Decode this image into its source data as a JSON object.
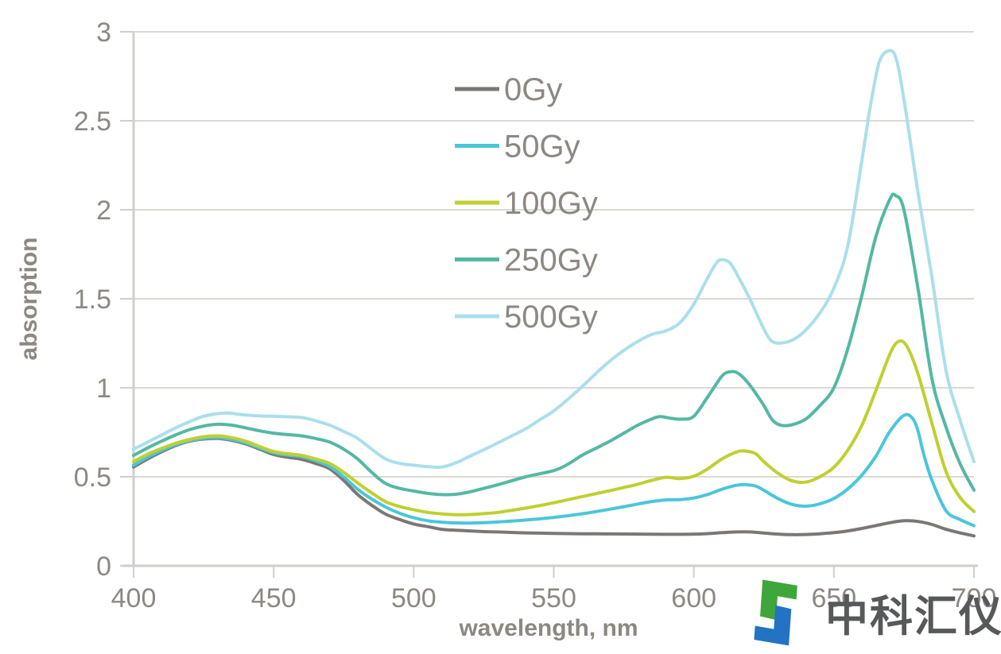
{
  "chart_data": {
    "type": "line",
    "title": "",
    "xlabel": "wavelength, nm",
    "ylabel": "absorption",
    "xlim": [
      400,
      700
    ],
    "ylim": [
      0,
      3
    ],
    "xticks": [
      400,
      450,
      500,
      550,
      600,
      650,
      700
    ],
    "yticks": [
      0,
      0.5,
      1,
      1.5,
      2,
      2.5,
      3
    ],
    "ytick_labels": [
      "0",
      "0.5",
      "1",
      "1.5",
      "2",
      "2.5",
      "3"
    ],
    "grid": "horizontal-only",
    "legend_position": "inside-upper-left",
    "legend_order": [
      "0Gy",
      "50Gy",
      "100Gy",
      "250Gy",
      "500Gy"
    ],
    "series": [
      {
        "name": "0Gy",
        "color": "#7b7773",
        "points": [
          [
            400,
            0.555
          ],
          [
            405,
            0.6
          ],
          [
            410,
            0.64
          ],
          [
            415,
            0.675
          ],
          [
            420,
            0.7
          ],
          [
            425,
            0.712
          ],
          [
            430,
            0.715
          ],
          [
            435,
            0.705
          ],
          [
            440,
            0.685
          ],
          [
            445,
            0.655
          ],
          [
            450,
            0.625
          ],
          [
            455,
            0.61
          ],
          [
            460,
            0.598
          ],
          [
            465,
            0.575
          ],
          [
            470,
            0.545
          ],
          [
            475,
            0.48
          ],
          [
            480,
            0.4
          ],
          [
            485,
            0.34
          ],
          [
            490,
            0.29
          ],
          [
            495,
            0.26
          ],
          [
            500,
            0.235
          ],
          [
            505,
            0.22
          ],
          [
            510,
            0.205
          ],
          [
            515,
            0.2
          ],
          [
            520,
            0.196
          ],
          [
            525,
            0.192
          ],
          [
            530,
            0.19
          ],
          [
            540,
            0.185
          ],
          [
            550,
            0.182
          ],
          [
            560,
            0.18
          ],
          [
            570,
            0.179
          ],
          [
            580,
            0.178
          ],
          [
            590,
            0.177
          ],
          [
            600,
            0.178
          ],
          [
            605,
            0.181
          ],
          [
            610,
            0.186
          ],
          [
            615,
            0.19
          ],
          [
            620,
            0.19
          ],
          [
            625,
            0.184
          ],
          [
            630,
            0.178
          ],
          [
            635,
            0.175
          ],
          [
            640,
            0.176
          ],
          [
            645,
            0.18
          ],
          [
            650,
            0.186
          ],
          [
            655,
            0.196
          ],
          [
            660,
            0.21
          ],
          [
            665,
            0.226
          ],
          [
            670,
            0.242
          ],
          [
            675,
            0.253
          ],
          [
            680,
            0.249
          ],
          [
            685,
            0.232
          ],
          [
            690,
            0.205
          ],
          [
            695,
            0.185
          ],
          [
            700,
            0.168
          ]
        ]
      },
      {
        "name": "50Gy",
        "color": "#4ac6db",
        "points": [
          [
            400,
            0.565
          ],
          [
            405,
            0.61
          ],
          [
            410,
            0.648
          ],
          [
            415,
            0.68
          ],
          [
            420,
            0.703
          ],
          [
            425,
            0.716
          ],
          [
            430,
            0.72
          ],
          [
            435,
            0.71
          ],
          [
            440,
            0.69
          ],
          [
            445,
            0.662
          ],
          [
            450,
            0.635
          ],
          [
            455,
            0.622
          ],
          [
            460,
            0.613
          ],
          [
            465,
            0.59
          ],
          [
            470,
            0.558
          ],
          [
            475,
            0.5
          ],
          [
            480,
            0.43
          ],
          [
            485,
            0.375
          ],
          [
            490,
            0.33
          ],
          [
            495,
            0.295
          ],
          [
            500,
            0.27
          ],
          [
            505,
            0.253
          ],
          [
            510,
            0.245
          ],
          [
            515,
            0.241
          ],
          [
            520,
            0.24
          ],
          [
            525,
            0.242
          ],
          [
            530,
            0.246
          ],
          [
            540,
            0.257
          ],
          [
            550,
            0.272
          ],
          [
            560,
            0.292
          ],
          [
            570,
            0.318
          ],
          [
            575,
            0.332
          ],
          [
            580,
            0.347
          ],
          [
            585,
            0.361
          ],
          [
            590,
            0.37
          ],
          [
            595,
            0.372
          ],
          [
            600,
            0.381
          ],
          [
            605,
            0.401
          ],
          [
            610,
            0.43
          ],
          [
            615,
            0.452
          ],
          [
            618,
            0.456
          ],
          [
            622,
            0.448
          ],
          [
            625,
            0.424
          ],
          [
            630,
            0.378
          ],
          [
            635,
            0.345
          ],
          [
            640,
            0.335
          ],
          [
            645,
            0.348
          ],
          [
            650,
            0.378
          ],
          [
            655,
            0.432
          ],
          [
            660,
            0.51
          ],
          [
            665,
            0.616
          ],
          [
            670,
            0.755
          ],
          [
            675,
            0.845
          ],
          [
            678,
            0.83
          ],
          [
            680,
            0.76
          ],
          [
            682,
            0.63
          ],
          [
            685,
            0.48
          ],
          [
            690,
            0.31
          ],
          [
            695,
            0.26
          ],
          [
            700,
            0.225
          ]
        ]
      },
      {
        "name": "100Gy",
        "color": "#bfd02f",
        "points": [
          [
            400,
            0.585
          ],
          [
            405,
            0.627
          ],
          [
            410,
            0.66
          ],
          [
            415,
            0.688
          ],
          [
            420,
            0.71
          ],
          [
            425,
            0.725
          ],
          [
            430,
            0.73
          ],
          [
            435,
            0.72
          ],
          [
            440,
            0.7
          ],
          [
            445,
            0.67
          ],
          [
            450,
            0.642
          ],
          [
            455,
            0.63
          ],
          [
            460,
            0.62
          ],
          [
            465,
            0.6
          ],
          [
            470,
            0.575
          ],
          [
            475,
            0.525
          ],
          [
            480,
            0.465
          ],
          [
            485,
            0.41
          ],
          [
            490,
            0.36
          ],
          [
            495,
            0.333
          ],
          [
            500,
            0.315
          ],
          [
            505,
            0.3
          ],
          [
            510,
            0.292
          ],
          [
            515,
            0.287
          ],
          [
            520,
            0.288
          ],
          [
            525,
            0.293
          ],
          [
            530,
            0.3
          ],
          [
            540,
            0.324
          ],
          [
            550,
            0.354
          ],
          [
            560,
            0.388
          ],
          [
            570,
            0.422
          ],
          [
            575,
            0.44
          ],
          [
            580,
            0.458
          ],
          [
            585,
            0.48
          ],
          [
            590,
            0.497
          ],
          [
            595,
            0.49
          ],
          [
            600,
            0.503
          ],
          [
            605,
            0.545
          ],
          [
            610,
            0.6
          ],
          [
            615,
            0.638
          ],
          [
            618,
            0.645
          ],
          [
            622,
            0.63
          ],
          [
            625,
            0.585
          ],
          [
            630,
            0.52
          ],
          [
            635,
            0.478
          ],
          [
            640,
            0.47
          ],
          [
            645,
            0.5
          ],
          [
            650,
            0.553
          ],
          [
            655,
            0.65
          ],
          [
            660,
            0.79
          ],
          [
            665,
            0.985
          ],
          [
            670,
            1.19
          ],
          [
            673,
            1.26
          ],
          [
            676,
            1.235
          ],
          [
            680,
            1.08
          ],
          [
            685,
            0.8
          ],
          [
            690,
            0.53
          ],
          [
            695,
            0.385
          ],
          [
            700,
            0.305
          ]
        ]
      },
      {
        "name": "250Gy",
        "color": "#54b8a2",
        "points": [
          [
            400,
            0.62
          ],
          [
            405,
            0.662
          ],
          [
            410,
            0.7
          ],
          [
            415,
            0.735
          ],
          [
            420,
            0.765
          ],
          [
            425,
            0.785
          ],
          [
            430,
            0.795
          ],
          [
            435,
            0.79
          ],
          [
            440,
            0.775
          ],
          [
            445,
            0.758
          ],
          [
            450,
            0.745
          ],
          [
            455,
            0.737
          ],
          [
            460,
            0.73
          ],
          [
            465,
            0.715
          ],
          [
            470,
            0.695
          ],
          [
            475,
            0.655
          ],
          [
            480,
            0.6
          ],
          [
            485,
            0.525
          ],
          [
            490,
            0.462
          ],
          [
            495,
            0.435
          ],
          [
            500,
            0.42
          ],
          [
            505,
            0.407
          ],
          [
            510,
            0.4
          ],
          [
            515,
            0.402
          ],
          [
            520,
            0.415
          ],
          [
            525,
            0.435
          ],
          [
            530,
            0.455
          ],
          [
            540,
            0.5
          ],
          [
            550,
            0.535
          ],
          [
            555,
            0.57
          ],
          [
            560,
            0.62
          ],
          [
            565,
            0.66
          ],
          [
            570,
            0.7
          ],
          [
            575,
            0.745
          ],
          [
            580,
            0.79
          ],
          [
            585,
            0.825
          ],
          [
            588,
            0.838
          ],
          [
            592,
            0.828
          ],
          [
            596,
            0.824
          ],
          [
            600,
            0.84
          ],
          [
            605,
            0.95
          ],
          [
            610,
            1.065
          ],
          [
            613,
            1.09
          ],
          [
            616,
            1.08
          ],
          [
            620,
            1.015
          ],
          [
            625,
            0.9
          ],
          [
            628,
            0.82
          ],
          [
            631,
            0.79
          ],
          [
            635,
            0.792
          ],
          [
            640,
            0.825
          ],
          [
            645,
            0.9
          ],
          [
            650,
            1.0
          ],
          [
            655,
            1.22
          ],
          [
            660,
            1.52
          ],
          [
            665,
            1.85
          ],
          [
            670,
            2.06
          ],
          [
            672,
            2.08
          ],
          [
            675,
            2.0
          ],
          [
            680,
            1.56
          ],
          [
            685,
            1.05
          ],
          [
            690,
            0.78
          ],
          [
            695,
            0.575
          ],
          [
            700,
            0.425
          ]
        ]
      },
      {
        "name": "500Gy",
        "color": "#aadfec",
        "points": [
          [
            400,
            0.655
          ],
          [
            405,
            0.695
          ],
          [
            410,
            0.735
          ],
          [
            415,
            0.775
          ],
          [
            420,
            0.81
          ],
          [
            425,
            0.84
          ],
          [
            430,
            0.855
          ],
          [
            434,
            0.858
          ],
          [
            438,
            0.85
          ],
          [
            442,
            0.845
          ],
          [
            446,
            0.841
          ],
          [
            450,
            0.84
          ],
          [
            455,
            0.837
          ],
          [
            460,
            0.833
          ],
          [
            465,
            0.815
          ],
          [
            470,
            0.79
          ],
          [
            475,
            0.755
          ],
          [
            480,
            0.715
          ],
          [
            485,
            0.655
          ],
          [
            490,
            0.6
          ],
          [
            495,
            0.575
          ],
          [
            500,
            0.565
          ],
          [
            505,
            0.557
          ],
          [
            510,
            0.555
          ],
          [
            515,
            0.578
          ],
          [
            520,
            0.615
          ],
          [
            525,
            0.652
          ],
          [
            530,
            0.69
          ],
          [
            535,
            0.73
          ],
          [
            540,
            0.77
          ],
          [
            545,
            0.82
          ],
          [
            550,
            0.87
          ],
          [
            555,
            0.935
          ],
          [
            560,
            1.005
          ],
          [
            565,
            1.08
          ],
          [
            570,
            1.15
          ],
          [
            575,
            1.21
          ],
          [
            580,
            1.26
          ],
          [
            585,
            1.3
          ],
          [
            590,
            1.32
          ],
          [
            595,
            1.365
          ],
          [
            600,
            1.47
          ],
          [
            605,
            1.62
          ],
          [
            608,
            1.7
          ],
          [
            610,
            1.72
          ],
          [
            613,
            1.7
          ],
          [
            616,
            1.62
          ],
          [
            620,
            1.5
          ],
          [
            625,
            1.33
          ],
          [
            628,
            1.26
          ],
          [
            632,
            1.253
          ],
          [
            636,
            1.275
          ],
          [
            640,
            1.325
          ],
          [
            645,
            1.42
          ],
          [
            650,
            1.56
          ],
          [
            655,
            1.8
          ],
          [
            660,
            2.28
          ],
          [
            663,
            2.58
          ],
          [
            666,
            2.82
          ],
          [
            669,
            2.89
          ],
          [
            672,
            2.86
          ],
          [
            675,
            2.62
          ],
          [
            680,
            2.1
          ],
          [
            685,
            1.62
          ],
          [
            690,
            1.1
          ],
          [
            695,
            0.82
          ],
          [
            700,
            0.585
          ]
        ]
      }
    ]
  },
  "watermark": {
    "logo_text": "中科汇仪",
    "text_color": "#57585a",
    "logo_green": "#3fa63c",
    "logo_blue": "#2273c3"
  },
  "colors": {
    "grid": "#dcd9d5",
    "axis": "#d2cec9",
    "tick_text": "#8c8882",
    "axis_title_text": "#8c8882",
    "legend_text": "#8c8882"
  }
}
